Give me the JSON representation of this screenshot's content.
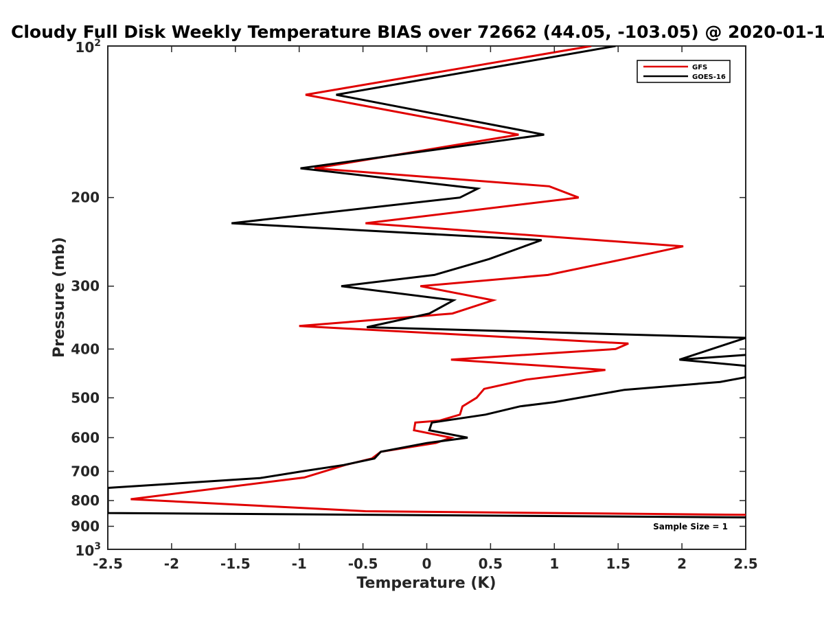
{
  "chart_data": {
    "type": "line",
    "title": "Cloudy Full Disk Weekly Temperature BIAS over 72662 (44.05, -103.05) @ 2020-01-1",
    "xlabel": "Temperature (K)",
    "ylabel": "Pressure (mb)",
    "xlim": [
      -2.5,
      2.5
    ],
    "ylim": [
      100,
      1000
    ],
    "yscale": "log",
    "yreversed": true,
    "x_ticks": [
      "-2.5",
      "-2",
      "-1.5",
      "-1",
      "-0.5",
      "0",
      "0.5",
      "1",
      "1.5",
      "2",
      "2.5"
    ],
    "y_ticks": [
      {
        "value": 100,
        "base": "10",
        "exp": "2"
      },
      {
        "value": 200,
        "label": "200"
      },
      {
        "value": 300,
        "label": "300"
      },
      {
        "value": 400,
        "label": "400"
      },
      {
        "value": 500,
        "label": "500"
      },
      {
        "value": 600,
        "label": "600"
      },
      {
        "value": 700,
        "label": "700"
      },
      {
        "value": 800,
        "label": "800"
      },
      {
        "value": 900,
        "label": "900"
      },
      {
        "value": 1000,
        "base": "10",
        "exp": "3"
      }
    ],
    "legend_position": "top-right",
    "annotation": "Sample Size = 1",
    "series": [
      {
        "name": "GFS",
        "color": "#e00000",
        "points": [
          [
            1.29,
            100
          ],
          [
            -0.95,
            125
          ],
          [
            0.72,
            150
          ],
          [
            -0.88,
            175
          ],
          [
            0.96,
            190
          ],
          [
            1.19,
            200
          ],
          [
            -0.48,
            225
          ],
          [
            2.01,
            250
          ],
          [
            1.55,
            265
          ],
          [
            0.95,
            285
          ],
          [
            -0.05,
            300
          ],
          [
            0.52,
            320
          ],
          [
            0.2,
            340
          ],
          [
            -1.0,
            360
          ],
          [
            1.58,
            390
          ],
          [
            1.48,
            400
          ],
          [
            0.19,
            420
          ],
          [
            1.4,
            440
          ],
          [
            0.78,
            460
          ],
          [
            0.45,
            480
          ],
          [
            0.39,
            500
          ],
          [
            0.28,
            520
          ],
          [
            0.26,
            540
          ],
          [
            0.1,
            555
          ],
          [
            -0.09,
            560
          ],
          [
            -0.1,
            580
          ],
          [
            0.19,
            600
          ],
          [
            0.07,
            615
          ],
          [
            -0.36,
            640
          ],
          [
            -0.43,
            660
          ],
          [
            -0.64,
            680
          ],
          [
            -0.96,
            720
          ],
          [
            -2.32,
            795
          ],
          [
            -0.48,
            840
          ],
          [
            2.5,
            854
          ]
        ]
      },
      {
        "name": "GOES-16",
        "color": "#000000",
        "points": [
          [
            1.48,
            100
          ],
          [
            -0.71,
            125
          ],
          [
            0.92,
            150
          ],
          [
            -0.99,
            175
          ],
          [
            0.4,
            192
          ],
          [
            0.26,
            200
          ],
          [
            -1.53,
            225
          ],
          [
            0.9,
            243
          ],
          [
            0.49,
            265
          ],
          [
            0.06,
            285
          ],
          [
            -0.67,
            300
          ],
          [
            0.21,
            320
          ],
          [
            0.02,
            340
          ],
          [
            -0.47,
            362
          ],
          [
            2.5,
            380
          ],
          [
            1.98,
            420
          ],
          [
            2.5,
            411
          ],
          [
            1.98,
            420
          ],
          [
            2.5,
            432
          ],
          [
            2.5,
            455
          ],
          [
            2.3,
            465
          ],
          [
            1.55,
            482
          ],
          [
            1.0,
            510
          ],
          [
            0.73,
            520
          ],
          [
            0.46,
            540
          ],
          [
            0.04,
            560
          ],
          [
            0.02,
            580
          ],
          [
            0.32,
            600
          ],
          [
            0.0,
            615
          ],
          [
            -0.36,
            640
          ],
          [
            -0.41,
            660
          ],
          [
            -0.65,
            680
          ],
          [
            -0.98,
            700
          ],
          [
            -1.31,
            722
          ],
          [
            -2.5,
            755
          ],
          [
            -2.5,
            847
          ],
          [
            2.5,
            864
          ]
        ]
      }
    ]
  }
}
